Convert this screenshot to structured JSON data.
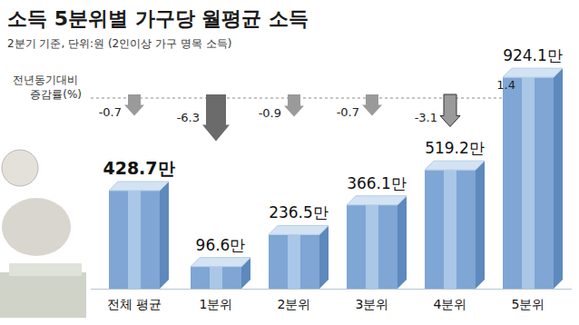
{
  "chart_data": {
    "type": "bar",
    "title": "소득 5분위별 가구당 월평균 소득",
    "subtitle": "2분기 기준, 단위:원 (2인이상 가구 명목 소득)",
    "categories": [
      "전체 평균",
      "1분위",
      "2분위",
      "3분위",
      "4분위",
      "5분위"
    ],
    "values": [
      428.7,
      96.6,
      236.5,
      366.1,
      519.2,
      924.1
    ],
    "value_labels": [
      "428.7만",
      "96.6만",
      "236.5만",
      "366.1만",
      "519.2만",
      "924.1만"
    ],
    "data_labels": true,
    "tick_labels": "x",
    "ylim": [
      0,
      1000
    ],
    "color": "#7fa6d4",
    "change_title": "전년동기대비 증감률(%)",
    "change": [
      -0.7,
      -6.3,
      -0.9,
      -0.7,
      -3.1,
      1.4
    ]
  }
}
